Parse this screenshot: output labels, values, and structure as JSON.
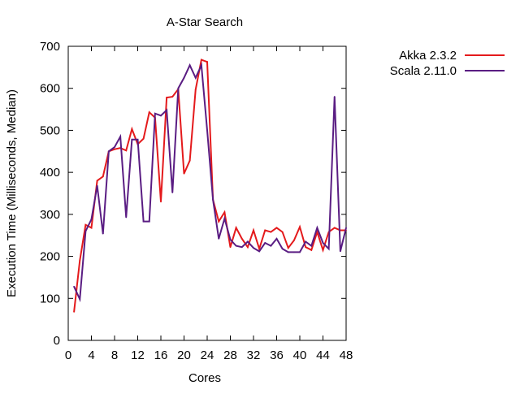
{
  "chart_data": {
    "type": "line",
    "title": "A-Star Search",
    "xlabel": "Cores",
    "ylabel": "Execution Time (Milliseconds, Median)",
    "xlim": [
      0,
      48
    ],
    "ylim": [
      0,
      700
    ],
    "x_ticks": [
      0,
      4,
      8,
      12,
      16,
      20,
      24,
      28,
      32,
      36,
      40,
      44,
      48
    ],
    "y_ticks": [
      0,
      100,
      200,
      300,
      400,
      500,
      600,
      700
    ],
    "grid": false,
    "legend_position": "top-right-outside",
    "x": [
      1,
      2,
      3,
      4,
      5,
      6,
      7,
      8,
      9,
      10,
      11,
      12,
      13,
      14,
      15,
      16,
      17,
      18,
      19,
      20,
      21,
      22,
      23,
      24,
      25,
      26,
      27,
      28,
      29,
      30,
      31,
      32,
      33,
      34,
      35,
      36,
      37,
      38,
      39,
      40,
      41,
      42,
      43,
      44,
      45,
      46,
      47,
      48
    ],
    "series": [
      {
        "name": "Akka 2.3.2",
        "color": "#e41a1c",
        "values": [
          68,
          190,
          275,
          268,
          380,
          390,
          450,
          455,
          458,
          452,
          503,
          467,
          480,
          543,
          530,
          330,
          578,
          580,
          598,
          397,
          428,
          597,
          668,
          663,
          335,
          283,
          305,
          222,
          268,
          242,
          222,
          262,
          218,
          262,
          258,
          268,
          258,
          220,
          238,
          270,
          222,
          215,
          258,
          215,
          258,
          268,
          262,
          262
        ]
      },
      {
        "name": "Scala 2.11.0",
        "color": "#5a1d83",
        "values": [
          128,
          98,
          260,
          288,
          368,
          254,
          450,
          460,
          485,
          293,
          478,
          478,
          283,
          283,
          540,
          535,
          548,
          352,
          600,
          625,
          655,
          625,
          655,
          500,
          335,
          242,
          290,
          240,
          225,
          222,
          235,
          220,
          212,
          232,
          225,
          242,
          218,
          210,
          210,
          210,
          235,
          225,
          268,
          232,
          218,
          580,
          212,
          268
        ]
      }
    ]
  }
}
